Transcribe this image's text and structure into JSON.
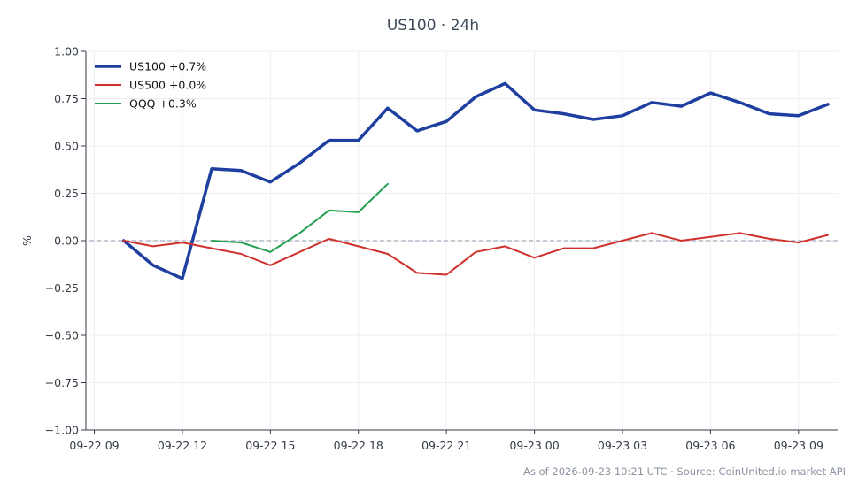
{
  "chart_data": {
    "type": "line",
    "title": "US100 · 24h",
    "xlabel": "",
    "ylabel": "%",
    "ylim": [
      -1.0,
      1.0
    ],
    "yticks": [
      "1.00",
      "0.75",
      "0.50",
      "0.25",
      "0.00",
      "−0.25",
      "−0.50",
      "−0.75",
      "−1.00"
    ],
    "ytick_values": [
      1.0,
      0.75,
      0.5,
      0.25,
      0.0,
      -0.25,
      -0.5,
      -0.75,
      -1.0
    ],
    "xticks": [
      "09-22 09",
      "09-22 12",
      "09-22 15",
      "09-22 18",
      "09-22 21",
      "09-23 00",
      "09-23 03",
      "09-23 06",
      "09-23 09"
    ],
    "xtick_dates": [
      "2026-09-22 09:00",
      "2026-09-22 12:00",
      "2026-09-22 15:00",
      "2026-09-22 18:00",
      "2026-09-22 21:00",
      "2026-09-23 00:00",
      "2026-09-23 03:00",
      "2026-09-23 06:00",
      "2026-09-23 09:00"
    ],
    "xlim": [
      "2026-09-22 08:50",
      "2026-09-23 10:20"
    ],
    "grid": true,
    "reference_line": 0.0,
    "legend_position": "top-left",
    "series": [
      {
        "name": "US100 +0.7%",
        "color": "#1f3fa0",
        "x": [
          "2026-09-22 10:00",
          "2026-09-22 11:00",
          "2026-09-22 12:00",
          "2026-09-22 13:00",
          "2026-09-22 14:00",
          "2026-09-22 15:00",
          "2026-09-22 16:00",
          "2026-09-22 17:00",
          "2026-09-22 18:00",
          "2026-09-22 19:00",
          "2026-09-22 20:00",
          "2026-09-22 21:00",
          "2026-09-22 22:00",
          "2026-09-22 23:00",
          "2026-09-23 00:00",
          "2026-09-23 01:00",
          "2026-09-23 02:00",
          "2026-09-23 03:00",
          "2026-09-23 04:00",
          "2026-09-23 05:00",
          "2026-09-23 06:00",
          "2026-09-23 07:00",
          "2026-09-23 08:00",
          "2026-09-23 09:00",
          "2026-09-23 10:00"
        ],
        "values": [
          0.0,
          -0.13,
          -0.2,
          0.38,
          0.37,
          0.31,
          0.41,
          0.53,
          0.53,
          0.7,
          0.58,
          0.63,
          0.76,
          0.83,
          0.69,
          0.67,
          0.64,
          0.66,
          0.73,
          0.71,
          0.78,
          0.73,
          0.67,
          0.66,
          0.72
        ]
      },
      {
        "name": "US500 +0.0%",
        "color": "#d0312d",
        "x": [
          "2026-09-22 10:00",
          "2026-09-22 11:00",
          "2026-09-22 12:00",
          "2026-09-22 13:00",
          "2026-09-22 14:00",
          "2026-09-22 15:00",
          "2026-09-22 16:00",
          "2026-09-22 17:00",
          "2026-09-22 18:00",
          "2026-09-22 19:00",
          "2026-09-22 20:00",
          "2026-09-22 21:00",
          "2026-09-22 22:00",
          "2026-09-22 23:00",
          "2026-09-23 00:00",
          "2026-09-23 01:00",
          "2026-09-23 02:00",
          "2026-09-23 03:00",
          "2026-09-23 04:00",
          "2026-09-23 05:00",
          "2026-09-23 06:00",
          "2026-09-23 07:00",
          "2026-09-23 08:00",
          "2026-09-23 09:00",
          "2026-09-23 10:00"
        ],
        "values": [
          0.0,
          -0.03,
          -0.01,
          -0.04,
          -0.07,
          -0.13,
          -0.06,
          0.01,
          -0.03,
          -0.07,
          -0.17,
          -0.18,
          -0.06,
          -0.03,
          -0.09,
          -0.04,
          -0.04,
          0.0,
          0.04,
          0.0,
          0.02,
          0.04,
          0.01,
          -0.01,
          0.03
        ]
      },
      {
        "name": "QQQ +0.3%",
        "color": "#22a050",
        "x": [
          "2026-09-22 13:00",
          "2026-09-22 14:00",
          "2026-09-22 15:00",
          "2026-09-22 16:00",
          "2026-09-22 17:00",
          "2026-09-22 18:00",
          "2026-09-22 19:00"
        ],
        "values": [
          0.0,
          -0.01,
          -0.06,
          0.04,
          0.16,
          0.15,
          0.3
        ]
      }
    ]
  },
  "footer": "As of 2026-09-23 10:21 UTC · Source: CoinUnited.io market API"
}
